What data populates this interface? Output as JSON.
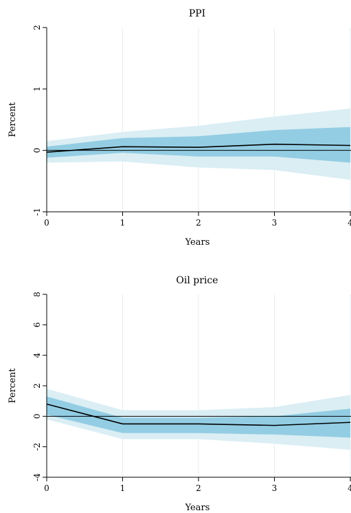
{
  "chart_data": [
    {
      "type": "area",
      "title": "PPI",
      "xlabel": "Years",
      "ylabel": "Percent",
      "xlim": [
        0,
        4
      ],
      "ylim": [
        -1,
        2
      ],
      "x_ticks": [
        "0",
        "1",
        "2",
        "3",
        "4"
      ],
      "y_ticks": [
        "-1",
        "0",
        "1",
        "2"
      ],
      "colors": {
        "outer_band": "#daeef4",
        "inner_band": "#93cde3",
        "line": "#000000"
      },
      "x": [
        0,
        1,
        2,
        3,
        4
      ],
      "series": [
        {
          "values": [
            -0.03,
            0.06,
            0.05,
            0.1,
            0.08
          ]
        }
      ],
      "bands": [
        {
          "lower": [
            -0.2,
            -0.18,
            -0.28,
            -0.32,
            -0.48
          ],
          "upper": [
            0.15,
            0.3,
            0.4,
            0.55,
            0.68
          ]
        },
        {
          "lower": [
            -0.12,
            -0.04,
            -0.1,
            -0.1,
            -0.2
          ],
          "upper": [
            0.06,
            0.2,
            0.23,
            0.33,
            0.38
          ]
        }
      ]
    },
    {
      "type": "area",
      "title": "Oil price",
      "xlabel": "Years",
      "ylabel": "Percent",
      "xlim": [
        0,
        4
      ],
      "ylim": [
        -4,
        8
      ],
      "x_ticks": [
        "0",
        "1",
        "2",
        "3",
        "4"
      ],
      "y_ticks": [
        "-4",
        "-2",
        "0",
        "2",
        "4",
        "6",
        "8"
      ],
      "colors": {
        "outer_band": "#daeef4",
        "inner_band": "#93cde3",
        "line": "#000000"
      },
      "x": [
        0,
        1,
        2,
        3,
        4
      ],
      "series": [
        {
          "values": [
            0.8,
            -0.5,
            -0.5,
            -0.6,
            -0.4
          ]
        }
      ],
      "bands": [
        {
          "lower": [
            -0.2,
            -1.5,
            -1.5,
            -1.8,
            -2.2
          ],
          "upper": [
            1.8,
            0.4,
            0.4,
            0.6,
            1.4
          ]
        },
        {
          "lower": [
            0.1,
            -1.1,
            -1.1,
            -1.2,
            -1.4
          ],
          "upper": [
            1.3,
            -0.1,
            -0.1,
            0.0,
            0.5
          ]
        }
      ]
    }
  ]
}
